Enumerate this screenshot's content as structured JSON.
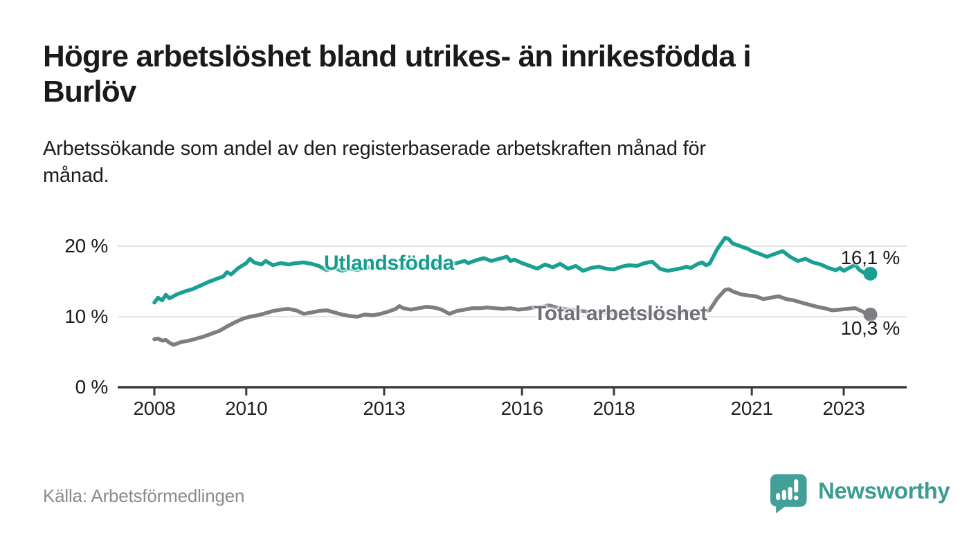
{
  "header": {
    "title": "Högre arbetslöshet bland utrikes- än inrikesfödda i\nBurlöv",
    "subtitle": "Arbetssökande som andel av den registerbaserade arbetskraften månad för\nmånad."
  },
  "footer": {
    "source": "Källa: Arbetsförmedlingen",
    "brand": "Newsworthy"
  },
  "colors": {
    "foreign_series": "#1aa093",
    "total_series": "#7d7d83",
    "gridline": "#dcdcdc",
    "axis": "#3a3a3a",
    "text_dark": "#1a1a1a",
    "source_text": "#8b8b8b",
    "brand_teal": "#3b9c93"
  },
  "chart_data": {
    "type": "line",
    "title": "Högre arbetslöshet bland utrikes- än inrikesfödda i Burlöv",
    "subtitle": "Arbetssökande som andel av den registerbaserade arbetskraften månad för månad.",
    "xlabel": "",
    "ylabel": "",
    "xlim": [
      2007.2,
      2024.4
    ],
    "ylim": [
      0,
      22
    ],
    "grid": "horizontal-only",
    "legend_position": "inline-on-lines",
    "x_ticks": [
      {
        "v": 2008,
        "label": "2008"
      },
      {
        "v": 2010,
        "label": "2010"
      },
      {
        "v": 2013,
        "label": "2013"
      },
      {
        "v": 2016,
        "label": "2016"
      },
      {
        "v": 2018,
        "label": "2018"
      },
      {
        "v": 2021,
        "label": "2021"
      },
      {
        "v": 2023,
        "label": "2023"
      }
    ],
    "y_ticks": [
      {
        "v": 0,
        "label": "0 %"
      },
      {
        "v": 10,
        "label": "10 %"
      },
      {
        "v": 20,
        "label": "20 %"
      }
    ],
    "grid_y": [
      10,
      20
    ],
    "series": [
      {
        "name": "Utlandsfödda",
        "color": "#1aa093",
        "end_label": "16,1 %",
        "end_value": 16.1,
        "points": [
          [
            2008.0,
            12.0
          ],
          [
            2008.08,
            12.7
          ],
          [
            2008.17,
            12.3
          ],
          [
            2008.25,
            13.1
          ],
          [
            2008.33,
            12.6
          ],
          [
            2008.5,
            13.2
          ],
          [
            2008.67,
            13.6
          ],
          [
            2008.83,
            13.9
          ],
          [
            2009.0,
            14.4
          ],
          [
            2009.17,
            14.9
          ],
          [
            2009.33,
            15.3
          ],
          [
            2009.5,
            15.7
          ],
          [
            2009.58,
            16.3
          ],
          [
            2009.67,
            16.0
          ],
          [
            2009.83,
            16.9
          ],
          [
            2010.0,
            17.6
          ],
          [
            2010.08,
            18.2
          ],
          [
            2010.17,
            17.7
          ],
          [
            2010.33,
            17.4
          ],
          [
            2010.42,
            17.9
          ],
          [
            2010.58,
            17.3
          ],
          [
            2010.75,
            17.6
          ],
          [
            2010.92,
            17.4
          ],
          [
            2011.08,
            17.6
          ],
          [
            2011.25,
            17.7
          ],
          [
            2011.42,
            17.5
          ],
          [
            2011.58,
            17.2
          ],
          [
            2011.75,
            16.6
          ],
          [
            2011.92,
            16.9
          ],
          [
            2012.08,
            16.5
          ],
          [
            2012.25,
            16.8
          ],
          [
            2012.42,
            16.6
          ],
          [
            2012.58,
            16.9
          ],
          [
            2012.75,
            17.1
          ],
          [
            2012.92,
            16.8
          ],
          [
            2013.08,
            17.0
          ],
          [
            2013.25,
            17.2
          ],
          [
            2013.42,
            16.9
          ],
          [
            2013.58,
            17.1
          ],
          [
            2013.75,
            17.3
          ],
          [
            2013.92,
            17.1
          ],
          [
            2014.08,
            17.3
          ],
          [
            2014.25,
            17.5
          ],
          [
            2014.42,
            17.4
          ],
          [
            2014.58,
            17.6
          ],
          [
            2014.75,
            17.9
          ],
          [
            2014.83,
            17.6
          ],
          [
            2015.0,
            18.0
          ],
          [
            2015.17,
            18.3
          ],
          [
            2015.33,
            17.9
          ],
          [
            2015.5,
            18.2
          ],
          [
            2015.67,
            18.5
          ],
          [
            2015.75,
            17.9
          ],
          [
            2015.83,
            18.1
          ],
          [
            2016.0,
            17.6
          ],
          [
            2016.17,
            17.2
          ],
          [
            2016.33,
            16.8
          ],
          [
            2016.5,
            17.4
          ],
          [
            2016.67,
            17.0
          ],
          [
            2016.83,
            17.5
          ],
          [
            2017.0,
            16.8
          ],
          [
            2017.17,
            17.2
          ],
          [
            2017.33,
            16.5
          ],
          [
            2017.5,
            16.9
          ],
          [
            2017.67,
            17.1
          ],
          [
            2017.83,
            16.8
          ],
          [
            2018.0,
            16.7
          ],
          [
            2018.17,
            17.1
          ],
          [
            2018.33,
            17.3
          ],
          [
            2018.5,
            17.2
          ],
          [
            2018.67,
            17.6
          ],
          [
            2018.83,
            17.8
          ],
          [
            2018.92,
            17.3
          ],
          [
            2019.0,
            16.8
          ],
          [
            2019.17,
            16.5
          ],
          [
            2019.33,
            16.7
          ],
          [
            2019.5,
            16.9
          ],
          [
            2019.58,
            17.1
          ],
          [
            2019.67,
            16.9
          ],
          [
            2019.83,
            17.5
          ],
          [
            2019.92,
            17.7
          ],
          [
            2020.0,
            17.3
          ],
          [
            2020.08,
            17.5
          ],
          [
            2020.25,
            19.6
          ],
          [
            2020.42,
            21.2
          ],
          [
            2020.5,
            21.0
          ],
          [
            2020.58,
            20.4
          ],
          [
            2020.75,
            20.0
          ],
          [
            2020.92,
            19.6
          ],
          [
            2021.0,
            19.3
          ],
          [
            2021.17,
            18.9
          ],
          [
            2021.33,
            18.5
          ],
          [
            2021.5,
            18.9
          ],
          [
            2021.67,
            19.3
          ],
          [
            2021.83,
            18.5
          ],
          [
            2022.0,
            17.9
          ],
          [
            2022.17,
            18.2
          ],
          [
            2022.33,
            17.7
          ],
          [
            2022.5,
            17.4
          ],
          [
            2022.67,
            16.9
          ],
          [
            2022.83,
            16.6
          ],
          [
            2022.92,
            16.9
          ],
          [
            2023.0,
            16.5
          ],
          [
            2023.17,
            17.1
          ],
          [
            2023.25,
            17.4
          ],
          [
            2023.33,
            16.7
          ],
          [
            2023.42,
            16.3
          ],
          [
            2023.5,
            16.0
          ],
          [
            2023.58,
            16.1
          ]
        ]
      },
      {
        "name": "Total arbetslöshet",
        "color": "#7d7d83",
        "end_label": "10,3 %",
        "end_value": 10.3,
        "points": [
          [
            2008.0,
            6.8
          ],
          [
            2008.08,
            6.9
          ],
          [
            2008.17,
            6.6
          ],
          [
            2008.25,
            6.7
          ],
          [
            2008.33,
            6.3
          ],
          [
            2008.42,
            6.0
          ],
          [
            2008.58,
            6.4
          ],
          [
            2008.75,
            6.6
          ],
          [
            2008.92,
            6.9
          ],
          [
            2009.08,
            7.2
          ],
          [
            2009.25,
            7.6
          ],
          [
            2009.42,
            8.0
          ],
          [
            2009.58,
            8.6
          ],
          [
            2009.75,
            9.2
          ],
          [
            2009.92,
            9.7
          ],
          [
            2010.08,
            10.0
          ],
          [
            2010.25,
            10.2
          ],
          [
            2010.42,
            10.5
          ],
          [
            2010.58,
            10.8
          ],
          [
            2010.75,
            11.0
          ],
          [
            2010.92,
            11.1
          ],
          [
            2011.08,
            10.9
          ],
          [
            2011.25,
            10.4
          ],
          [
            2011.42,
            10.6
          ],
          [
            2011.58,
            10.8
          ],
          [
            2011.75,
            10.9
          ],
          [
            2011.92,
            10.6
          ],
          [
            2012.08,
            10.3
          ],
          [
            2012.25,
            10.1
          ],
          [
            2012.42,
            10.0
          ],
          [
            2012.58,
            10.3
          ],
          [
            2012.75,
            10.2
          ],
          [
            2012.92,
            10.4
          ],
          [
            2013.08,
            10.7
          ],
          [
            2013.25,
            11.1
          ],
          [
            2013.33,
            11.5
          ],
          [
            2013.42,
            11.2
          ],
          [
            2013.58,
            11.0
          ],
          [
            2013.75,
            11.2
          ],
          [
            2013.92,
            11.4
          ],
          [
            2014.08,
            11.3
          ],
          [
            2014.25,
            11.0
          ],
          [
            2014.42,
            10.4
          ],
          [
            2014.58,
            10.8
          ],
          [
            2014.75,
            11.0
          ],
          [
            2014.92,
            11.2
          ],
          [
            2015.08,
            11.2
          ],
          [
            2015.25,
            11.3
          ],
          [
            2015.42,
            11.2
          ],
          [
            2015.58,
            11.1
          ],
          [
            2015.75,
            11.2
          ],
          [
            2015.92,
            11.0
          ],
          [
            2016.08,
            11.1
          ],
          [
            2016.25,
            11.3
          ],
          [
            2016.42,
            11.4
          ],
          [
            2016.58,
            11.6
          ],
          [
            2016.75,
            11.3
          ],
          [
            2016.92,
            11.1
          ],
          [
            2017.17,
            10.9
          ],
          [
            2017.42,
            10.7
          ],
          [
            2017.67,
            10.6
          ],
          [
            2017.92,
            10.5
          ],
          [
            2018.17,
            10.4
          ],
          [
            2018.42,
            10.3
          ],
          [
            2018.67,
            10.4
          ],
          [
            2018.92,
            10.5
          ],
          [
            2019.17,
            10.4
          ],
          [
            2019.42,
            10.5
          ],
          [
            2019.67,
            10.7
          ],
          [
            2019.92,
            10.8
          ],
          [
            2020.08,
            10.9
          ],
          [
            2020.25,
            12.6
          ],
          [
            2020.42,
            13.8
          ],
          [
            2020.5,
            13.9
          ],
          [
            2020.58,
            13.6
          ],
          [
            2020.75,
            13.2
          ],
          [
            2020.92,
            13.0
          ],
          [
            2021.08,
            12.9
          ],
          [
            2021.25,
            12.5
          ],
          [
            2021.42,
            12.7
          ],
          [
            2021.58,
            12.9
          ],
          [
            2021.75,
            12.5
          ],
          [
            2021.92,
            12.3
          ],
          [
            2022.08,
            12.0
          ],
          [
            2022.25,
            11.7
          ],
          [
            2022.42,
            11.4
          ],
          [
            2022.58,
            11.2
          ],
          [
            2022.75,
            10.9
          ],
          [
            2022.92,
            11.0
          ],
          [
            2023.08,
            11.1
          ],
          [
            2023.25,
            11.2
          ],
          [
            2023.42,
            10.7
          ],
          [
            2023.5,
            10.4
          ],
          [
            2023.58,
            10.3
          ]
        ]
      }
    ]
  }
}
